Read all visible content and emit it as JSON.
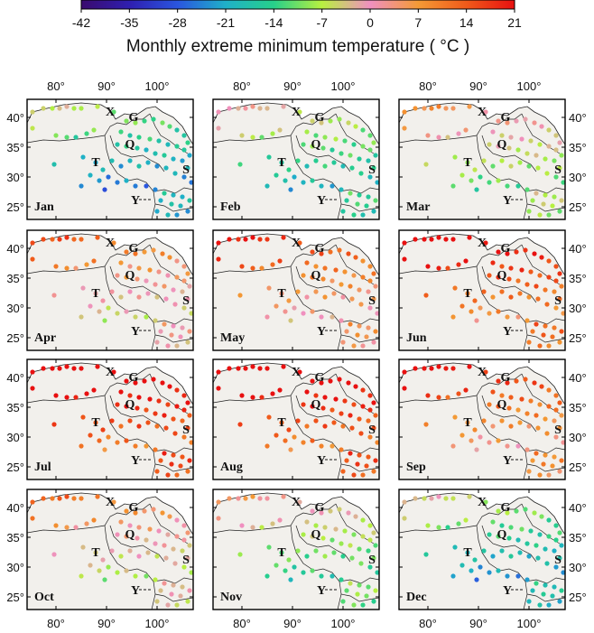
{
  "colorbar": {
    "ticks": [
      "-42",
      "-35",
      "-28",
      "-21",
      "-14",
      "-7",
      "0",
      "7",
      "14",
      "21"
    ],
    "stops": [
      "#3a0a6e",
      "#2f1fb0",
      "#2a55e0",
      "#1fb0c8",
      "#27d08a",
      "#b8f040",
      "#f090c0",
      "#f39a35",
      "#f05a1a",
      "#e81010"
    ]
  },
  "title_prefix": "Monthly extreme minimum temperature ( ",
  "title_unit": "°C",
  "title_suffix": " )",
  "axes": {
    "lon_labels": [
      "80°",
      "90°",
      "100°"
    ],
    "lat_labels": [
      "40°",
      "35°",
      "30°",
      "25°"
    ]
  },
  "region_labels": [
    "X",
    "G",
    "Q",
    "T",
    "S",
    "Y"
  ],
  "months": [
    "Jan",
    "Feb",
    "Mar",
    "Apr",
    "May",
    "Jun",
    "Jul",
    "Aug",
    "Sep",
    "Oct",
    "Nov",
    "Dec"
  ],
  "colors": {
    "land": "#f2f0ec",
    "border": "#222222"
  }
}
